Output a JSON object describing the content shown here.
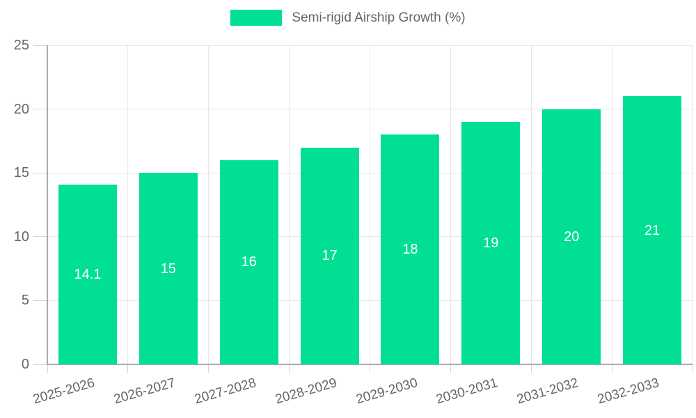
{
  "chart_data": {
    "type": "bar",
    "title": "",
    "legend_label": "Semi-rigid Airship Growth (%)",
    "legend_position": "top",
    "categories": [
      "2025-2026",
      "2026-2027",
      "2027-2028",
      "2028-2029",
      "2029-2030",
      "2030-2031",
      "2031-2032",
      "2032-2033"
    ],
    "values": [
      14.1,
      15,
      16,
      17,
      18,
      19,
      20,
      21
    ],
    "value_labels": [
      "14.1",
      "15",
      "16",
      "17",
      "18",
      "19",
      "20",
      "21"
    ],
    "xlabel": "",
    "ylabel": "",
    "ylim": [
      0,
      25
    ],
    "yticks": [
      0,
      5,
      10,
      15,
      20,
      25
    ],
    "grid": true,
    "colors": {
      "bar": "#00DF92",
      "bar_value_text": "#FFFFFF",
      "axis_text": "#666666",
      "gridline": "#E7E7E7",
      "axis_line": "#ABABAB",
      "tick_mark": "#D5D5D5"
    }
  }
}
